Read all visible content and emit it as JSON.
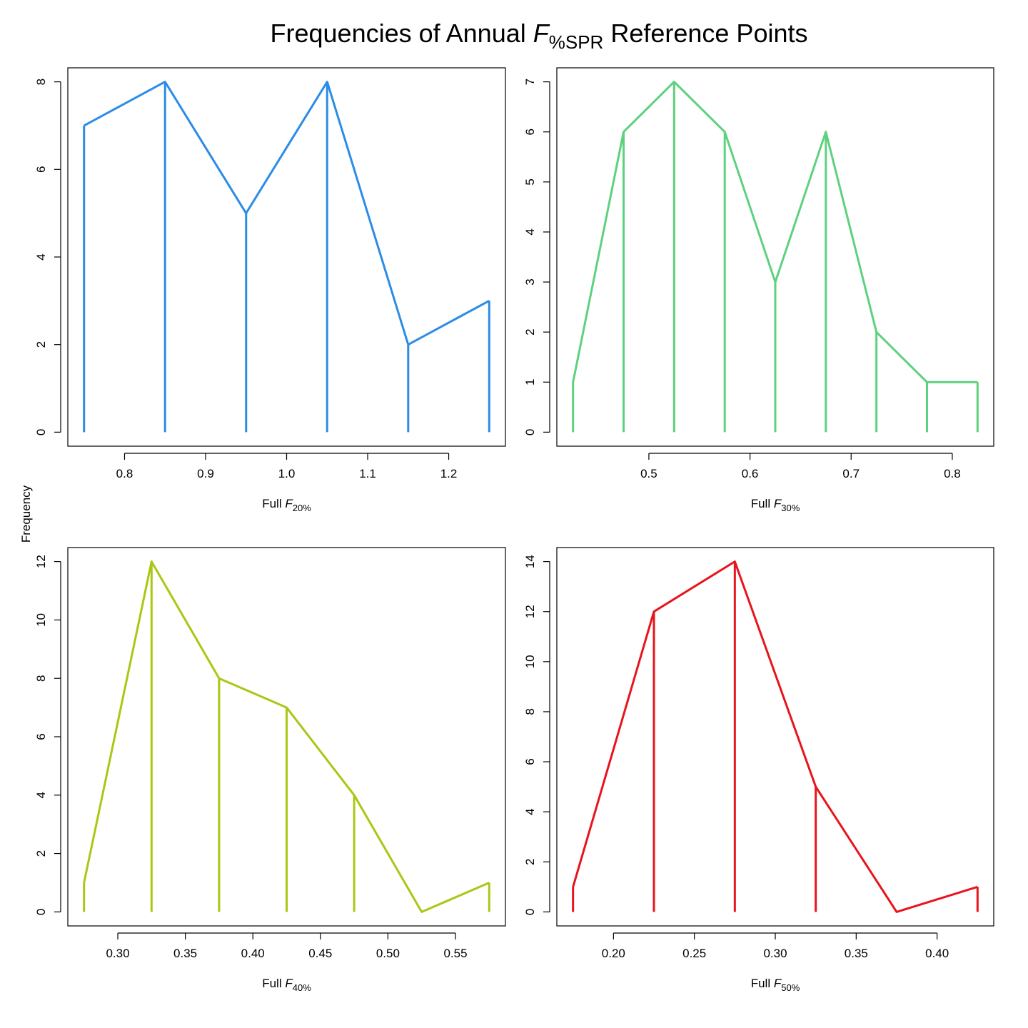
{
  "title": {
    "prefix": "Frequencies of Annual ",
    "symbol": "F",
    "subscript": "%SPR",
    "suffix": " Reference Points"
  },
  "ylabel": "Frequency",
  "chart_data": [
    {
      "type": "line",
      "color": "#2b8ce6",
      "xlabel_prefix": "Full",
      "xlabel_symbol": "F",
      "xlabel_subscript": "20%",
      "x": [
        0.75,
        0.85,
        0.95,
        1.05,
        1.15,
        1.25
      ],
      "y": [
        7,
        8,
        5,
        8,
        2,
        3
      ],
      "xlim": [
        0.73,
        1.27
      ],
      "ylim": [
        -0.32,
        8.32
      ],
      "xticks": [
        0.8,
        0.9,
        1.0,
        1.1,
        1.2
      ],
      "xtick_labels": [
        "0.8",
        "0.9",
        "1.0",
        "1.1",
        "1.2"
      ],
      "yticks": [
        0,
        2,
        4,
        6,
        8
      ],
      "ytick_labels": [
        "0",
        "2",
        "4",
        "6",
        "8"
      ]
    },
    {
      "type": "line",
      "color": "#5dd17e",
      "xlabel_prefix": "Full",
      "xlabel_symbol": "F",
      "xlabel_subscript": "30%",
      "x": [
        0.425,
        0.475,
        0.525,
        0.575,
        0.625,
        0.675,
        0.725,
        0.775,
        0.825
      ],
      "y": [
        1,
        6,
        7,
        6,
        3,
        6,
        2,
        1,
        1
      ],
      "xlim": [
        0.409,
        0.841
      ],
      "ylim": [
        -0.28,
        7.28
      ],
      "xticks": [
        0.5,
        0.6,
        0.7,
        0.8
      ],
      "xtick_labels": [
        "0.5",
        "0.6",
        "0.7",
        "0.8"
      ],
      "yticks": [
        0,
        1,
        2,
        3,
        4,
        5,
        6,
        7
      ],
      "ytick_labels": [
        "0",
        "1",
        "2",
        "3",
        "4",
        "5",
        "6",
        "7"
      ]
    },
    {
      "type": "line",
      "color": "#a8c814",
      "xlabel_prefix": "Full",
      "xlabel_symbol": "F",
      "xlabel_subscript": "40%",
      "x": [
        0.275,
        0.325,
        0.375,
        0.425,
        0.475,
        0.525,
        0.575
      ],
      "y": [
        1,
        12,
        8,
        7,
        4,
        0,
        1
      ],
      "xlim": [
        0.263,
        0.587
      ],
      "ylim": [
        -0.48,
        12.48
      ],
      "xticks": [
        0.3,
        0.35,
        0.4,
        0.45,
        0.5,
        0.55
      ],
      "xtick_labels": [
        "0.30",
        "0.35",
        "0.40",
        "0.45",
        "0.50",
        "0.55"
      ],
      "yticks": [
        0,
        2,
        4,
        6,
        8,
        10,
        12
      ],
      "ytick_labels": [
        "0",
        "2",
        "4",
        "6",
        "8",
        "10",
        "12"
      ]
    },
    {
      "type": "line",
      "color": "#e8141c",
      "xlabel_prefix": "Full",
      "xlabel_symbol": "F",
      "xlabel_subscript": "50%",
      "x": [
        0.175,
        0.225,
        0.275,
        0.325,
        0.375,
        0.425
      ],
      "y": [
        1,
        12,
        14,
        5,
        0,
        1
      ],
      "xlim": [
        0.165,
        0.435
      ],
      "ylim": [
        -0.56,
        14.56
      ],
      "xticks": [
        0.2,
        0.25,
        0.3,
        0.35,
        0.4
      ],
      "xtick_labels": [
        "0.20",
        "0.25",
        "0.30",
        "0.35",
        "0.40"
      ],
      "yticks": [
        0,
        2,
        4,
        6,
        8,
        10,
        12,
        14
      ],
      "ytick_labels": [
        "0",
        "2",
        "4",
        "6",
        "8",
        "10",
        "12",
        "14"
      ]
    }
  ]
}
